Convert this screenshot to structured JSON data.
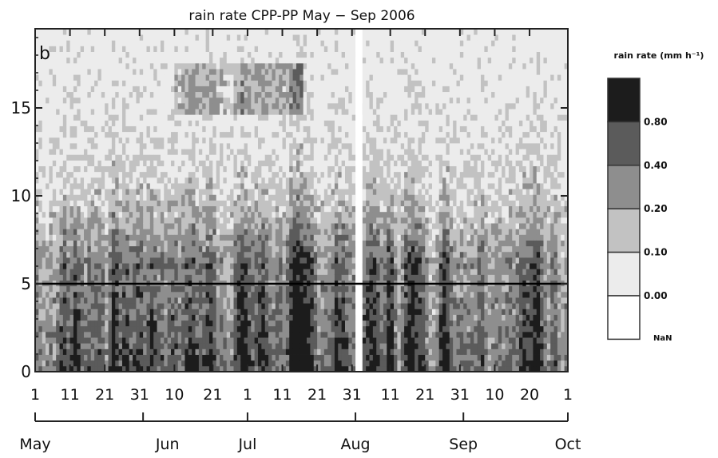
{
  "chart_data": {
    "type": "heatmap",
    "title": "rain rate CPP-PP May − Sep 2006",
    "panel_label": "b",
    "xlabel": "",
    "ylabel": "",
    "x_tick_labels": [
      "1",
      "11",
      "21",
      "31",
      "10",
      "21",
      "1",
      "11",
      "21",
      "31",
      "11",
      "21",
      "31",
      "10",
      "20",
      "1"
    ],
    "month_labels": [
      "May",
      "Jun",
      "Jul",
      "Aug",
      "Sep",
      "Oct"
    ],
    "x_range": [
      "2006-05-01",
      "2006-10-01"
    ],
    "ylim": [
      0,
      19.5
    ],
    "y_ticks": [
      0,
      5,
      10,
      15
    ],
    "y_tick_labels": [
      "0",
      "5",
      "10",
      "15"
    ],
    "missing_interval": [
      "2006-08-01",
      "2006-08-03"
    ],
    "reference_line_y": 5,
    "colorbar": {
      "title": "rain rate (mm h⁻¹)",
      "levels": [
        0.0,
        0.1,
        0.2,
        0.4,
        0.8
      ],
      "level_labels": [
        "0.00",
        "0.10",
        "0.20",
        "0.40",
        "0.80"
      ],
      "nan_label": "NaN",
      "colors": [
        "#ffffff",
        "#ececec",
        "#c2c2c2",
        "#8e8e8e",
        "#5b5b5b",
        "#1c1c1c"
      ]
    }
  }
}
